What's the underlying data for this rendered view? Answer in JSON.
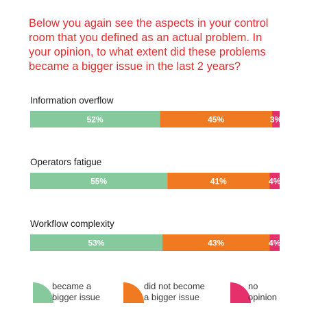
{
  "title": "Below you again see the aspects in your control\nroom that you defined as an actual problem. In\nyour opinion, to what extent did these problems\nbecame a bigger issue in the last 2 years?",
  "colors": {
    "title": "#e42d2f",
    "became_bigger": "#86c99c",
    "not_bigger": "#f07a21",
    "no_opinion": "#e6306b",
    "text": "#1a1a1a",
    "bar_label": "#ffffff"
  },
  "chart_data": {
    "type": "bar",
    "orientation": "horizontal",
    "stacked": true,
    "percent_scale": true,
    "categories": [
      "Information overflow",
      "Operators fatigue",
      "Workflow complexity"
    ],
    "series": [
      {
        "name": "became a\nbigger issue",
        "values": [
          52,
          55,
          53
        ],
        "labels": [
          "52%",
          "55%",
          "53%"
        ]
      },
      {
        "name": "did not become\na bigger issue",
        "values": [
          45,
          41,
          43
        ],
        "labels": [
          "45%",
          "41%",
          "43%"
        ]
      },
      {
        "name": "no\nopinion",
        "values": [
          3,
          4,
          4
        ],
        "labels": [
          "3%",
          "4%",
          "4%"
        ]
      }
    ],
    "legend_position": "bottom",
    "grid": false
  }
}
